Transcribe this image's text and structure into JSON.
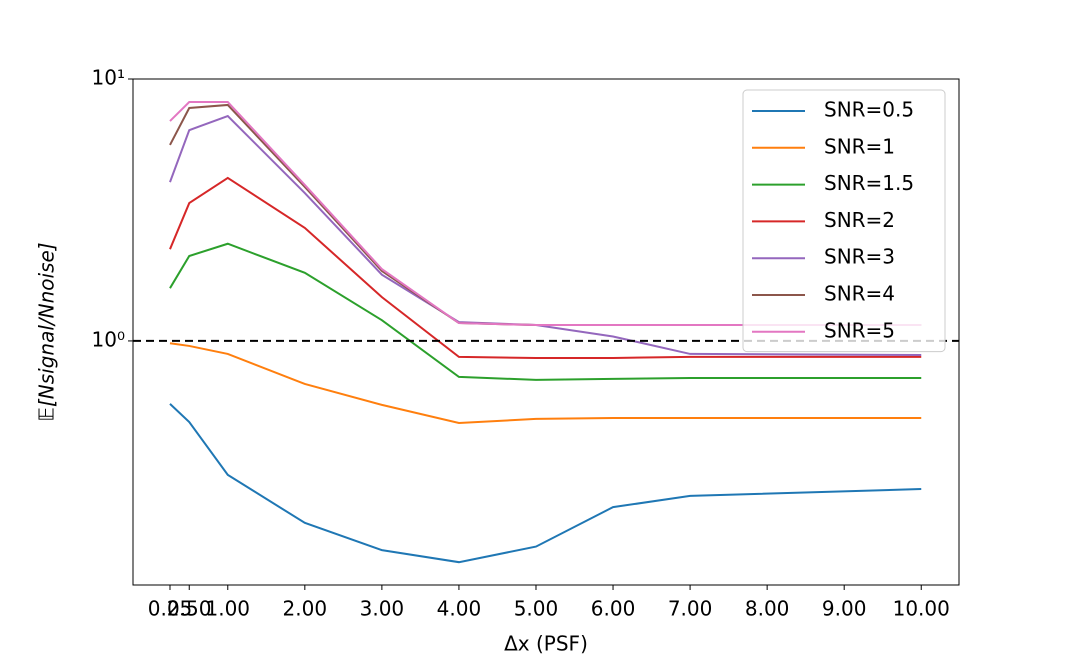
{
  "chart_data": {
    "type": "line",
    "xlabel": "Δx (PSF)",
    "ylabel": "𝔼[Nsignal/Nnoise]",
    "x": [
      0.25,
      0.5,
      1,
      2,
      3,
      4,
      5,
      6,
      7,
      10
    ],
    "xlim": [
      -0.23,
      10.49
    ],
    "xticks": [
      {
        "value": 0.25,
        "label": "0.25"
      },
      {
        "value": 0.5,
        "label": "0.50"
      },
      {
        "value": 1,
        "label": "1.00"
      },
      {
        "value": 2,
        "label": "2.00"
      },
      {
        "value": 3,
        "label": "3.00"
      },
      {
        "value": 4,
        "label": "4.00"
      },
      {
        "value": 5,
        "label": "5.00"
      },
      {
        "value": 6,
        "label": "6.00"
      },
      {
        "value": 7,
        "label": "7.00"
      },
      {
        "value": 8,
        "label": "8.00"
      },
      {
        "value": 9,
        "label": "9.00"
      },
      {
        "value": 10,
        "label": "10.00"
      }
    ],
    "ylim": [
      0.117,
      10
    ],
    "yscale": "log",
    "yticks": [
      {
        "value": 1,
        "label": "10⁰"
      },
      {
        "value": 10,
        "label": "10¹"
      }
    ],
    "reference_line": {
      "value": 1,
      "color": "#000000",
      "style": "dashed"
    },
    "legend": "upper right",
    "series": [
      {
        "name": "SNR=0.5",
        "color": "#1f77b4",
        "values": [
          0.575,
          0.49,
          0.308,
          0.202,
          0.159,
          0.143,
          0.164,
          0.232,
          0.256,
          0.272
        ]
      },
      {
        "name": "SNR=1",
        "color": "#ff7f0e",
        "values": [
          0.98,
          0.957,
          0.892,
          0.685,
          0.57,
          0.486,
          0.504,
          0.508,
          0.508,
          0.508
        ]
      },
      {
        "name": "SNR=1.5",
        "color": "#2ca02c",
        "values": [
          1.59,
          2.11,
          2.35,
          1.82,
          1.2,
          0.729,
          0.71,
          0.716,
          0.722,
          0.722
        ]
      },
      {
        "name": "SNR=2",
        "color": "#d62728",
        "values": [
          2.24,
          3.36,
          4.19,
          2.7,
          1.47,
          0.869,
          0.861,
          0.861,
          0.869,
          0.869
        ]
      },
      {
        "name": "SNR=3",
        "color": "#9467bd",
        "values": [
          4.04,
          6.38,
          7.22,
          3.67,
          1.79,
          1.18,
          1.15,
          1.04,
          0.892,
          0.884
        ]
      },
      {
        "name": "SNR=4",
        "color": "#8c564b",
        "values": [
          5.6,
          7.75,
          7.96,
          3.87,
          1.85,
          1.17,
          1.15,
          1.15,
          1.15,
          1.15
        ]
      },
      {
        "name": "SNR=5",
        "color": "#e377c2",
        "values": [
          6.91,
          8.17,
          8.17,
          3.94,
          1.88,
          1.17,
          1.15,
          1.15,
          1.15,
          1.15
        ]
      }
    ]
  }
}
